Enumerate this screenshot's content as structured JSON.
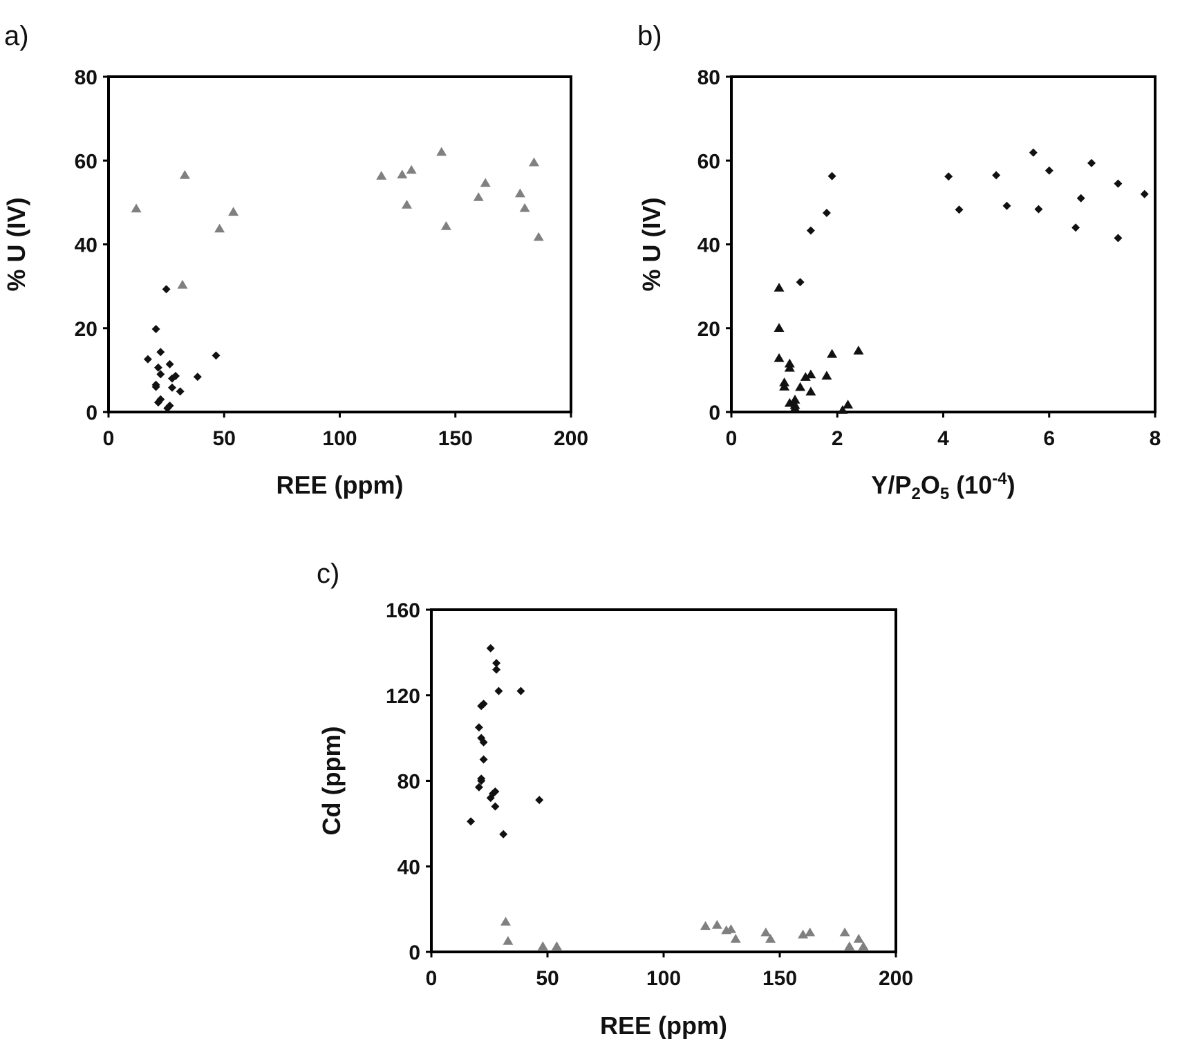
{
  "chart_data": [
    {
      "panel": "a)",
      "type": "scatter",
      "xlabel": "REE (ppm)",
      "ylabel": "% U (IV)",
      "xlim": [
        0,
        200
      ],
      "ylim": [
        0,
        80
      ],
      "xticks": [
        0,
        50,
        100,
        150,
        200
      ],
      "yticks": [
        0,
        20,
        40,
        60,
        80
      ],
      "grid": false,
      "series": [
        {
          "name": "triangles",
          "marker": "triangle",
          "color": "#808080",
          "points": [
            [
              12,
              48.5
            ],
            [
              33,
              56.5
            ],
            [
              32,
              30.3
            ],
            [
              48,
              43.7
            ],
            [
              54,
              47.7
            ],
            [
              118,
              56.3
            ],
            [
              127,
              56.6
            ],
            [
              129,
              49.4
            ],
            [
              131,
              57.7
            ],
            [
              144,
              62.0
            ],
            [
              146,
              44.3
            ],
            [
              160,
              51.2
            ],
            [
              163,
              54.6
            ],
            [
              178,
              52.1
            ],
            [
              180,
              48.6
            ],
            [
              184,
              59.5
            ],
            [
              186,
              41.7
            ]
          ]
        },
        {
          "name": "diamonds",
          "marker": "diamond",
          "color": "#111111",
          "points": [
            [
              25,
              29.3
            ],
            [
              20.5,
              19.8
            ],
            [
              22.5,
              14.3
            ],
            [
              17,
              12.6
            ],
            [
              46.5,
              13.5
            ],
            [
              26.5,
              11.4
            ],
            [
              21.5,
              10.6
            ],
            [
              22.5,
              9.0
            ],
            [
              29,
              8.6
            ],
            [
              38.5,
              8.4
            ],
            [
              27.5,
              8.0
            ],
            [
              20.5,
              6.5
            ],
            [
              20.5,
              6.0
            ],
            [
              27.5,
              5.8
            ],
            [
              31,
              4.9
            ],
            [
              22.5,
              3.0
            ],
            [
              21.5,
              2.3
            ],
            [
              26.5,
              1.5
            ],
            [
              25.5,
              0.9
            ]
          ]
        }
      ]
    },
    {
      "panel": "b)",
      "type": "scatter",
      "xlabel_main": "Y/P",
      "xlabel_sub1": "2",
      "xlabel_mid": "O",
      "xlabel_sub2": "5",
      "xlabel_tail": " (10",
      "xlabel_sup": "-4",
      "xlabel_end": ")",
      "ylabel": "% U (IV)",
      "xlim": [
        0,
        8
      ],
      "ylim": [
        0,
        80
      ],
      "xticks": [
        0,
        2,
        4,
        6,
        8
      ],
      "yticks": [
        0,
        20,
        40,
        60,
        80
      ],
      "grid": false,
      "series": [
        {
          "name": "diamonds",
          "marker": "diamond",
          "color": "#111111",
          "points": [
            [
              1.9,
              56.3
            ],
            [
              1.8,
              47.5
            ],
            [
              1.5,
              43.3
            ],
            [
              1.3,
              31.0
            ],
            [
              4.1,
              56.2
            ],
            [
              4.3,
              48.3
            ],
            [
              5.0,
              56.5
            ],
            [
              5.2,
              49.2
            ],
            [
              5.7,
              61.9
            ],
            [
              5.8,
              48.4
            ],
            [
              6.0,
              57.6
            ],
            [
              6.5,
              44.0
            ],
            [
              6.6,
              51.0
            ],
            [
              6.8,
              59.4
            ],
            [
              7.3,
              54.5
            ],
            [
              7.3,
              41.5
            ],
            [
              7.8,
              52.0
            ]
          ]
        },
        {
          "name": "triangles",
          "marker": "triangle",
          "color": "#111111",
          "points": [
            [
              0.9,
              29.6
            ],
            [
              0.9,
              20.0
            ],
            [
              0.9,
              12.8
            ],
            [
              1.1,
              11.5
            ],
            [
              1.1,
              10.5
            ],
            [
              1.9,
              13.8
            ],
            [
              2.4,
              14.6
            ],
            [
              1.5,
              8.9
            ],
            [
              1.8,
              8.6
            ],
            [
              1.4,
              8.3
            ],
            [
              1.0,
              7.0
            ],
            [
              1.0,
              6.0
            ],
            [
              1.3,
              5.9
            ],
            [
              1.5,
              4.8
            ],
            [
              1.2,
              2.9
            ],
            [
              1.1,
              2.1
            ],
            [
              1.2,
              1.6
            ],
            [
              2.2,
              1.7
            ],
            [
              2.1,
              0.4
            ],
            [
              1.2,
              0.9
            ]
          ]
        }
      ]
    },
    {
      "panel": "c)",
      "type": "scatter",
      "xlabel": "REE (ppm)",
      "ylabel": "Cd (ppm)",
      "xlim": [
        0,
        200
      ],
      "ylim": [
        0,
        160
      ],
      "xticks": [
        0,
        50,
        100,
        150,
        200
      ],
      "yticks": [
        0,
        40,
        80,
        120,
        160
      ],
      "grid": false,
      "series": [
        {
          "name": "diamonds",
          "marker": "diamond",
          "color": "#111111",
          "points": [
            [
              25.5,
              142
            ],
            [
              28,
              135
            ],
            [
              28,
              132
            ],
            [
              29,
              122
            ],
            [
              38.5,
              122
            ],
            [
              22.5,
              116
            ],
            [
              21.5,
              115
            ],
            [
              20.5,
              105
            ],
            [
              21.5,
              100
            ],
            [
              22.5,
              98
            ],
            [
              22.5,
              90
            ],
            [
              21.5,
              81
            ],
            [
              21.5,
              80
            ],
            [
              20.5,
              77
            ],
            [
              27.5,
              75
            ],
            [
              26.5,
              74
            ],
            [
              25.5,
              72
            ],
            [
              46.5,
              71
            ],
            [
              27.5,
              68
            ],
            [
              17,
              61
            ],
            [
              31,
              55
            ]
          ]
        },
        {
          "name": "triangles",
          "marker": "triangle",
          "color": "#808080",
          "points": [
            [
              32,
              14
            ],
            [
              33,
              5
            ],
            [
              48,
              2.5
            ],
            [
              54,
              2.5
            ],
            [
              118,
              12
            ],
            [
              123,
              12.5
            ],
            [
              127,
              10
            ],
            [
              129,
              10.5
            ],
            [
              131,
              6
            ],
            [
              144,
              9
            ],
            [
              146,
              6
            ],
            [
              160,
              8
            ],
            [
              163,
              9
            ],
            [
              178,
              9
            ],
            [
              180,
              2.5
            ],
            [
              184,
              6
            ],
            [
              186,
              2.5
            ]
          ]
        }
      ]
    }
  ]
}
